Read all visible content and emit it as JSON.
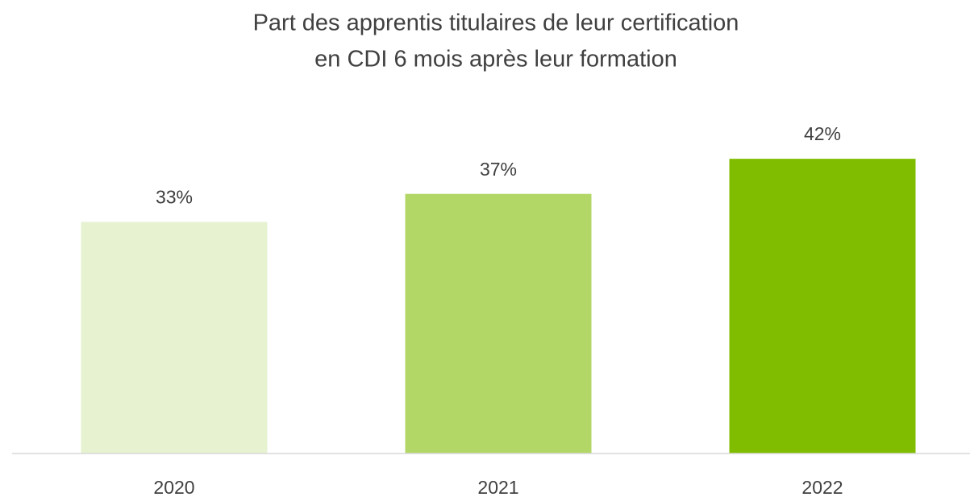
{
  "chart_data": {
    "type": "bar",
    "title": [
      "Part des apprentis titulaires de leur certification",
      "en CDI 6 mois après leur formation"
    ],
    "categories": [
      "2020",
      "2021",
      "2022"
    ],
    "values": [
      33,
      37,
      42
    ],
    "value_labels": [
      "33%",
      "37%",
      "42%"
    ],
    "colors": [
      "#e6f2d0",
      "#b3d767",
      "#80bd00"
    ],
    "ylim": [
      0,
      45
    ]
  }
}
